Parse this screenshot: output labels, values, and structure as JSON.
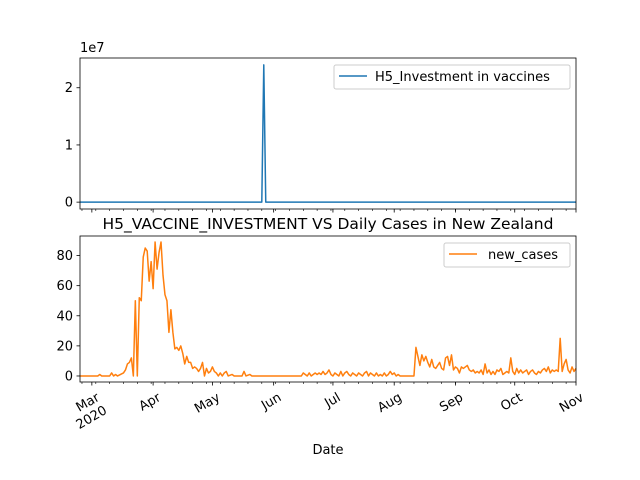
{
  "chart_data": [
    {
      "type": "line",
      "title": "",
      "xlabel": "",
      "ylabel": "",
      "offset_label": "1e7",
      "ylim": [
        -0.12,
        2.52
      ],
      "yticks": [
        0,
        1,
        2
      ],
      "ytick_labels": [
        "0",
        "1",
        "2"
      ],
      "xlim": [
        "2020-02-24",
        "2020-11-01"
      ],
      "x_tick_labels_visible": false,
      "legend": "upper right",
      "series": [
        {
          "name": "H5_Investment in vaccines",
          "color": "#1f77b4",
          "points": [
            [
              "2020-02-24",
              0
            ],
            [
              "2020-03-03",
              0
            ],
            [
              "2020-03-05",
              0
            ],
            [
              "2020-05-26",
              0
            ],
            [
              "2020-05-27",
              2.4
            ],
            [
              "2020-05-28",
              0
            ],
            [
              "2020-11-01",
              0
            ]
          ]
        }
      ]
    },
    {
      "type": "line",
      "title": "H5_VACCINE_INVESTMENT VS Daily Cases in New Zealand",
      "xlabel": "Date",
      "ylabel": "",
      "ylim": [
        -4,
        93
      ],
      "yticks": [
        0,
        20,
        40,
        60,
        80
      ],
      "ytick_labels": [
        "0",
        "20",
        "40",
        "60",
        "80"
      ],
      "xlim": [
        "2020-02-24",
        "2020-11-01"
      ],
      "xticks": [
        "2020-03-01",
        "2020-04-01",
        "2020-05-01",
        "2020-06-01",
        "2020-07-01",
        "2020-08-01",
        "2020-09-01",
        "2020-10-01",
        "2020-11-01"
      ],
      "xtick_labels": [
        "Mar\n2020",
        "Apr",
        "May",
        "Jun",
        "Jul",
        "Aug",
        "Sep",
        "Oct",
        "Nov"
      ],
      "legend": "upper right",
      "series": [
        {
          "name": "new_cases",
          "color": "#ff7f0e",
          "points": [
            [
              "2020-02-24",
              0
            ],
            [
              "2020-03-04",
              0
            ],
            [
              "2020-03-05",
              1
            ],
            [
              "2020-03-06",
              0
            ],
            [
              "2020-03-10",
              0
            ],
            [
              "2020-03-11",
              2
            ],
            [
              "2020-03-12",
              0
            ],
            [
              "2020-03-13",
              1
            ],
            [
              "2020-03-14",
              0
            ],
            [
              "2020-03-17",
              2
            ],
            [
              "2020-03-18",
              4
            ],
            [
              "2020-03-19",
              8
            ],
            [
              "2020-03-20",
              9
            ],
            [
              "2020-03-21",
              12
            ],
            [
              "2020-03-22",
              0
            ],
            [
              "2020-03-23",
              50
            ],
            [
              "2020-03-24",
              0
            ],
            [
              "2020-03-25",
              52
            ],
            [
              "2020-03-26",
              50
            ],
            [
              "2020-03-27",
              79
            ],
            [
              "2020-03-28",
              85
            ],
            [
              "2020-03-29",
              83
            ],
            [
              "2020-03-30",
              63
            ],
            [
              "2020-03-31",
              76
            ],
            [
              "2020-04-01",
              58
            ],
            [
              "2020-04-02",
              89
            ],
            [
              "2020-04-03",
              71
            ],
            [
              "2020-04-04",
              82
            ],
            [
              "2020-04-05",
              89
            ],
            [
              "2020-04-06",
              67
            ],
            [
              "2020-04-07",
              54
            ],
            [
              "2020-04-08",
              50
            ],
            [
              "2020-04-09",
              29
            ],
            [
              "2020-04-10",
              44
            ],
            [
              "2020-04-11",
              29
            ],
            [
              "2020-04-12",
              18
            ],
            [
              "2020-04-13",
              19
            ],
            [
              "2020-04-14",
              17
            ],
            [
              "2020-04-15",
              20
            ],
            [
              "2020-04-16",
              15
            ],
            [
              "2020-04-17",
              8
            ],
            [
              "2020-04-18",
              13
            ],
            [
              "2020-04-19",
              9
            ],
            [
              "2020-04-20",
              9
            ],
            [
              "2020-04-21",
              5
            ],
            [
              "2020-04-22",
              6
            ],
            [
              "2020-04-23",
              5
            ],
            [
              "2020-04-24",
              3
            ],
            [
              "2020-04-25",
              5
            ],
            [
              "2020-04-26",
              9
            ],
            [
              "2020-04-27",
              0
            ],
            [
              "2020-04-28",
              5
            ],
            [
              "2020-04-29",
              2
            ],
            [
              "2020-04-30",
              3
            ],
            [
              "2020-05-01",
              6
            ],
            [
              "2020-05-02",
              3
            ],
            [
              "2020-05-03",
              2
            ],
            [
              "2020-05-04",
              0
            ],
            [
              "2020-05-05",
              2
            ],
            [
              "2020-05-06",
              0
            ],
            [
              "2020-05-07",
              2
            ],
            [
              "2020-05-08",
              3
            ],
            [
              "2020-05-09",
              0
            ],
            [
              "2020-05-11",
              1
            ],
            [
              "2020-05-12",
              0
            ],
            [
              "2020-05-16",
              0
            ],
            [
              "2020-05-17",
              3
            ],
            [
              "2020-05-18",
              0
            ],
            [
              "2020-05-20",
              1
            ],
            [
              "2020-05-21",
              0
            ],
            [
              "2020-06-15",
              0
            ],
            [
              "2020-06-16",
              2
            ],
            [
              "2020-06-17",
              1
            ],
            [
              "2020-06-18",
              0
            ],
            [
              "2020-06-19",
              2
            ],
            [
              "2020-06-20",
              0
            ],
            [
              "2020-06-22",
              2
            ],
            [
              "2020-06-23",
              1
            ],
            [
              "2020-06-24",
              2
            ],
            [
              "2020-06-25",
              1
            ],
            [
              "2020-06-26",
              3
            ],
            [
              "2020-06-27",
              1
            ],
            [
              "2020-06-28",
              2
            ],
            [
              "2020-06-29",
              4
            ],
            [
              "2020-06-30",
              1
            ],
            [
              "2020-07-01",
              0
            ],
            [
              "2020-07-02",
              2
            ],
            [
              "2020-07-03",
              1
            ],
            [
              "2020-07-04",
              0
            ],
            [
              "2020-07-05",
              3
            ],
            [
              "2020-07-06",
              0
            ],
            [
              "2020-07-07",
              2
            ],
            [
              "2020-07-08",
              3
            ],
            [
              "2020-07-09",
              1
            ],
            [
              "2020-07-10",
              0
            ],
            [
              "2020-07-11",
              2
            ],
            [
              "2020-07-12",
              1
            ],
            [
              "2020-07-13",
              0
            ],
            [
              "2020-07-14",
              2
            ],
            [
              "2020-07-15",
              1
            ],
            [
              "2020-07-16",
              0
            ],
            [
              "2020-07-17",
              2
            ],
            [
              "2020-07-18",
              3
            ],
            [
              "2020-07-19",
              0
            ],
            [
              "2020-07-20",
              2
            ],
            [
              "2020-07-21",
              1
            ],
            [
              "2020-07-22",
              0
            ],
            [
              "2020-07-23",
              2
            ],
            [
              "2020-07-24",
              0
            ],
            [
              "2020-07-25",
              1
            ],
            [
              "2020-07-26",
              0
            ],
            [
              "2020-07-27",
              2
            ],
            [
              "2020-07-28",
              0
            ],
            [
              "2020-07-29",
              1
            ],
            [
              "2020-07-30",
              3
            ],
            [
              "2020-07-31",
              1
            ],
            [
              "2020-08-01",
              2
            ],
            [
              "2020-08-02",
              0
            ],
            [
              "2020-08-03",
              1
            ],
            [
              "2020-08-04",
              0
            ],
            [
              "2020-08-11",
              0
            ],
            [
              "2020-08-12",
              19
            ],
            [
              "2020-08-13",
              13
            ],
            [
              "2020-08-14",
              7
            ],
            [
              "2020-08-15",
              14
            ],
            [
              "2020-08-16",
              10
            ],
            [
              "2020-08-17",
              13
            ],
            [
              "2020-08-18",
              9
            ],
            [
              "2020-08-19",
              6
            ],
            [
              "2020-08-20",
              11
            ],
            [
              "2020-08-21",
              6
            ],
            [
              "2020-08-22",
              5
            ],
            [
              "2020-08-23",
              7
            ],
            [
              "2020-08-24",
              9
            ],
            [
              "2020-08-25",
              5
            ],
            [
              "2020-08-26",
              4
            ],
            [
              "2020-08-27",
              12
            ],
            [
              "2020-08-28",
              13
            ],
            [
              "2020-08-29",
              7
            ],
            [
              "2020-08-30",
              14
            ],
            [
              "2020-08-31",
              4
            ],
            [
              "2020-09-01",
              6
            ],
            [
              "2020-09-02",
              5
            ],
            [
              "2020-09-03",
              2
            ],
            [
              "2020-09-04",
              6
            ],
            [
              "2020-09-05",
              5
            ],
            [
              "2020-09-06",
              6
            ],
            [
              "2020-09-07",
              7
            ],
            [
              "2020-09-08",
              4
            ],
            [
              "2020-09-09",
              3
            ],
            [
              "2020-09-10",
              4
            ],
            [
              "2020-09-11",
              2
            ],
            [
              "2020-09-12",
              3
            ],
            [
              "2020-09-13",
              2
            ],
            [
              "2020-09-14",
              4
            ],
            [
              "2020-09-15",
              1
            ],
            [
              "2020-09-16",
              8
            ],
            [
              "2020-09-17",
              2
            ],
            [
              "2020-09-18",
              4
            ],
            [
              "2020-09-19",
              1
            ],
            [
              "2020-09-20",
              3
            ],
            [
              "2020-09-21",
              1
            ],
            [
              "2020-09-22",
              4
            ],
            [
              "2020-09-23",
              3
            ],
            [
              "2020-09-24",
              5
            ],
            [
              "2020-09-25",
              1
            ],
            [
              "2020-09-26",
              2
            ],
            [
              "2020-09-27",
              3
            ],
            [
              "2020-09-28",
              2
            ],
            [
              "2020-09-29",
              12
            ],
            [
              "2020-09-30",
              3
            ],
            [
              "2020-10-01",
              1
            ],
            [
              "2020-10-02",
              5
            ],
            [
              "2020-10-03",
              2
            ],
            [
              "2020-10-04",
              4
            ],
            [
              "2020-10-05",
              2
            ],
            [
              "2020-10-06",
              3
            ],
            [
              "2020-10-07",
              4
            ],
            [
              "2020-10-08",
              1
            ],
            [
              "2020-10-09",
              3
            ],
            [
              "2020-10-10",
              4
            ],
            [
              "2020-10-11",
              2
            ],
            [
              "2020-10-12",
              1
            ],
            [
              "2020-10-13",
              3
            ],
            [
              "2020-10-14",
              2
            ],
            [
              "2020-10-15",
              4
            ],
            [
              "2020-10-16",
              5
            ],
            [
              "2020-10-17",
              3
            ],
            [
              "2020-10-18",
              6
            ],
            [
              "2020-10-19",
              2
            ],
            [
              "2020-10-20",
              4
            ],
            [
              "2020-10-21",
              3
            ],
            [
              "2020-10-22",
              4
            ],
            [
              "2020-10-23",
              3
            ],
            [
              "2020-10-24",
              25
            ],
            [
              "2020-10-25",
              3
            ],
            [
              "2020-10-26",
              8
            ],
            [
              "2020-10-27",
              11
            ],
            [
              "2020-10-28",
              4
            ],
            [
              "2020-10-29",
              2
            ],
            [
              "2020-10-30",
              6
            ],
            [
              "2020-10-31",
              3
            ],
            [
              "2020-11-01",
              5
            ]
          ]
        }
      ]
    }
  ]
}
